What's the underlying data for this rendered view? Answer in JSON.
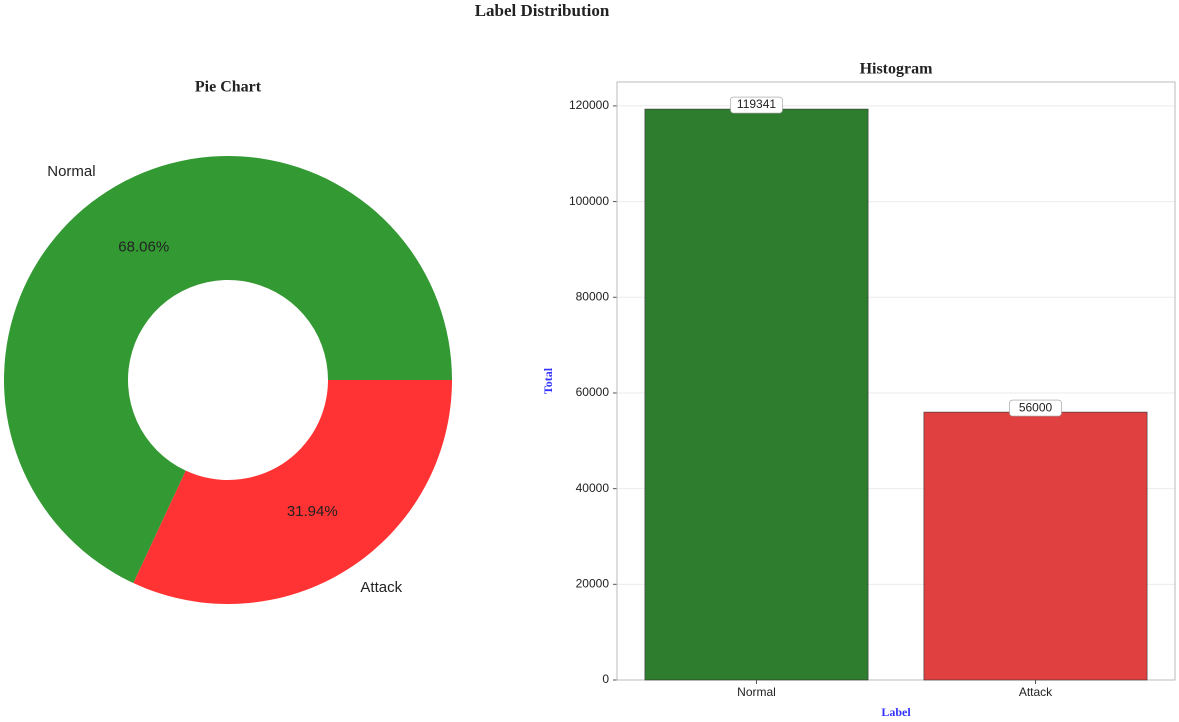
{
  "title": "Label Distribution",
  "chart_data": [
    {
      "type": "pie",
      "title": "Pie Chart",
      "donut": true,
      "categories": [
        "Normal",
        "Attack"
      ],
      "values": [
        68.06,
        31.94
      ],
      "value_labels": [
        "68.06%",
        "31.94%"
      ],
      "colors": [
        "#339933",
        "#ff3333"
      ]
    },
    {
      "type": "bar",
      "title": "Histogram",
      "xlabel": "Label",
      "ylabel": "Total",
      "categories": [
        "Normal",
        "Attack"
      ],
      "values": [
        119341,
        56000
      ],
      "colors": [
        "#2e7d2e",
        "#e04040"
      ],
      "ylim": [
        0,
        125000
      ],
      "yticks": [
        0,
        20000,
        40000,
        60000,
        80000,
        100000,
        120000
      ],
      "grid": true
    }
  ]
}
